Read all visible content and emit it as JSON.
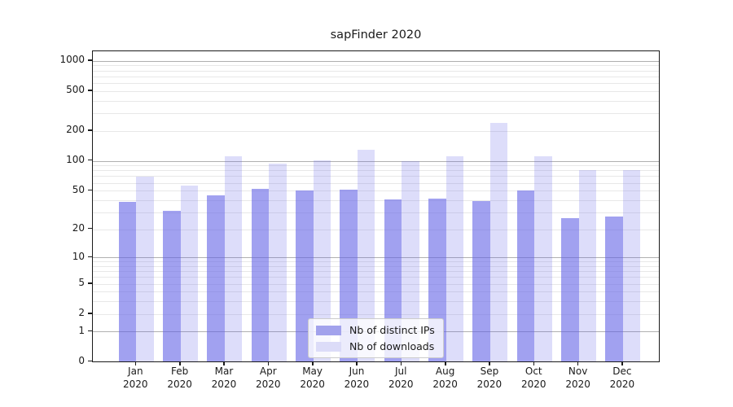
{
  "chart_data": {
    "type": "bar",
    "title": "sapFinder 2020",
    "categories": [
      [
        "Jan",
        "2020"
      ],
      [
        "Feb",
        "2020"
      ],
      [
        "Mar",
        "2020"
      ],
      [
        "Apr",
        "2020"
      ],
      [
        "May",
        "2020"
      ],
      [
        "Jun",
        "2020"
      ],
      [
        "Jul",
        "2020"
      ],
      [
        "Aug",
        "2020"
      ],
      [
        "Sep",
        "2020"
      ],
      [
        "Oct",
        "2020"
      ],
      [
        "Nov",
        "2020"
      ],
      [
        "Dec",
        "2020"
      ]
    ],
    "series": [
      {
        "name": "Nb of distinct IPs",
        "color": "rgba(99,99,230,0.60)",
        "legend_color": "#a2a2ec",
        "values": [
          38,
          31,
          44,
          52,
          50,
          51,
          40,
          41,
          39,
          50,
          26,
          27
        ]
      },
      {
        "name": "Nb of downloads",
        "color": "rgba(99,99,230,0.22)",
        "legend_color": "#dcdcf8",
        "values": [
          69,
          56,
          110,
          92,
          100,
          127,
          98,
          110,
          239,
          110,
          80,
          80
        ]
      }
    ],
    "y_axis": {
      "scale": "log10(value+1)",
      "ticks": [
        1000,
        500,
        200,
        100,
        50,
        20,
        10,
        5,
        2,
        1,
        0
      ],
      "major_gridlines": [
        1,
        10,
        100,
        1000
      ],
      "minor_gridlines": [
        2,
        3,
        4,
        5,
        6,
        7,
        8,
        9,
        20,
        30,
        40,
        50,
        60,
        70,
        80,
        90,
        200,
        300,
        400,
        500,
        600,
        700,
        800,
        900
      ],
      "max": 1250
    },
    "legend": {
      "position": "lower-center-inside",
      "entries": [
        "Nb of distinct IPs",
        "Nb of downloads"
      ]
    },
    "grid": true,
    "colors": {
      "major_grid": "#b0b0b0",
      "minor_grid": "#e8e8e8",
      "spine": "#1a1a1a",
      "text": "#1a1a1a"
    }
  }
}
